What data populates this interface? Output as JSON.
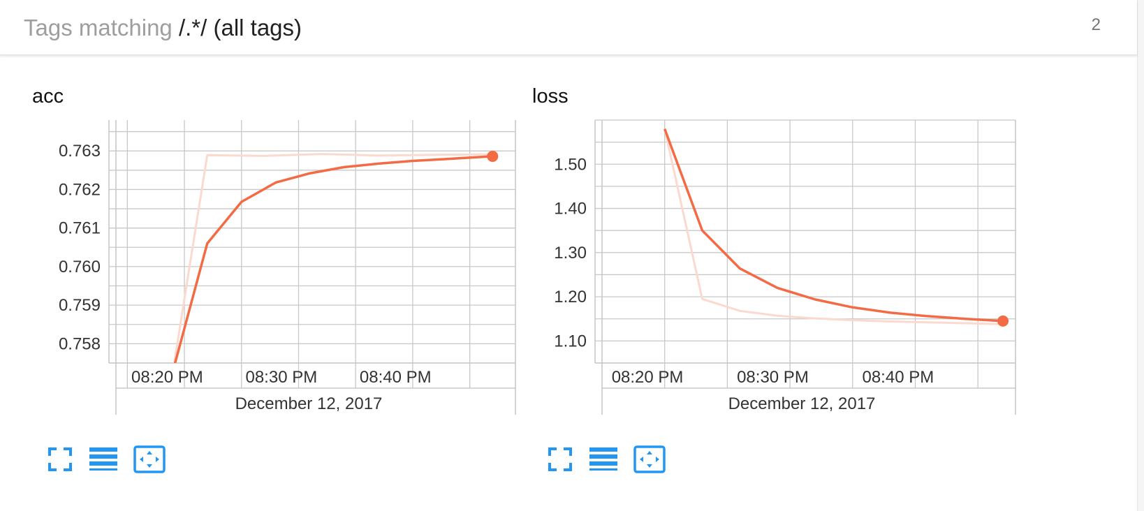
{
  "header": {
    "prefix": "Tags matching ",
    "regex": "/.*/",
    "suffix": " (all tags)",
    "count": "2"
  },
  "colors": {
    "series": "#f26b45",
    "series_faint": "#fcd9cf",
    "grid": "#c8c8c8",
    "icon": "#2196f3"
  },
  "panels": [
    {
      "title": "acc",
      "x_date_label": "December 12, 2017",
      "buttons": [
        "fullscreen-icon",
        "list-icon",
        "fit-domain-icon"
      ]
    },
    {
      "title": "loss",
      "x_date_label": "December 12, 2017",
      "buttons": [
        "fullscreen-icon",
        "list-icon",
        "fit-domain-icon"
      ]
    }
  ],
  "chart_data": [
    {
      "type": "line",
      "title": "acc",
      "xlabel": "December 12, 2017",
      "x_tick_labels": [
        "08:20 PM",
        "08:30 PM",
        "08:40 PM"
      ],
      "y_tick_labels": [
        "0.758",
        "0.759",
        "0.760",
        "0.761",
        "0.762",
        "0.763"
      ],
      "ylim": [
        0.7575,
        0.7638
      ],
      "xlim": [
        "20:14",
        "20:49"
      ],
      "grid": true,
      "series": [
        {
          "style": "raw",
          "x": [
            "20:19",
            "20:22",
            "20:27",
            "20:32",
            "20:37",
            "20:42",
            "20:47"
          ],
          "y": [
            0.7573,
            0.76289,
            0.76287,
            0.76292,
            0.76288,
            0.7629,
            0.76291
          ]
        },
        {
          "style": "smoothed",
          "x": [
            "20:19",
            "20:22",
            "20:25",
            "20:28",
            "20:31",
            "20:34",
            "20:37",
            "20:40",
            "20:43",
            "20:47"
          ],
          "y": [
            0.7573,
            0.7606,
            0.76168,
            0.76218,
            0.76242,
            0.76258,
            0.76267,
            0.76274,
            0.76279,
            0.76286
          ]
        }
      ]
    },
    {
      "type": "line",
      "title": "loss",
      "xlabel": "December 12, 2017",
      "x_tick_labels": [
        "08:20 PM",
        "08:30 PM",
        "08:40 PM"
      ],
      "y_tick_labels": [
        "1.10",
        "1.20",
        "1.30",
        "1.40",
        "1.50"
      ],
      "ylim": [
        1.05,
        1.6
      ],
      "xlim": [
        "20:15",
        "20:48"
      ],
      "grid": true,
      "series": [
        {
          "style": "raw",
          "x": [
            "20:20",
            "20:23",
            "20:26",
            "20:29",
            "20:32",
            "20:35",
            "20:38",
            "20:41",
            "20:44",
            "20:47"
          ],
          "y": [
            1.58,
            1.195,
            1.168,
            1.157,
            1.151,
            1.147,
            1.144,
            1.142,
            1.14,
            1.138
          ]
        },
        {
          "style": "smoothed",
          "x": [
            "20:20",
            "20:23",
            "20:26",
            "20:29",
            "20:32",
            "20:35",
            "20:38",
            "20:41",
            "20:44",
            "20:47"
          ],
          "y": [
            1.58,
            1.35,
            1.264,
            1.22,
            1.194,
            1.176,
            1.164,
            1.156,
            1.15,
            1.145
          ]
        }
      ]
    }
  ]
}
